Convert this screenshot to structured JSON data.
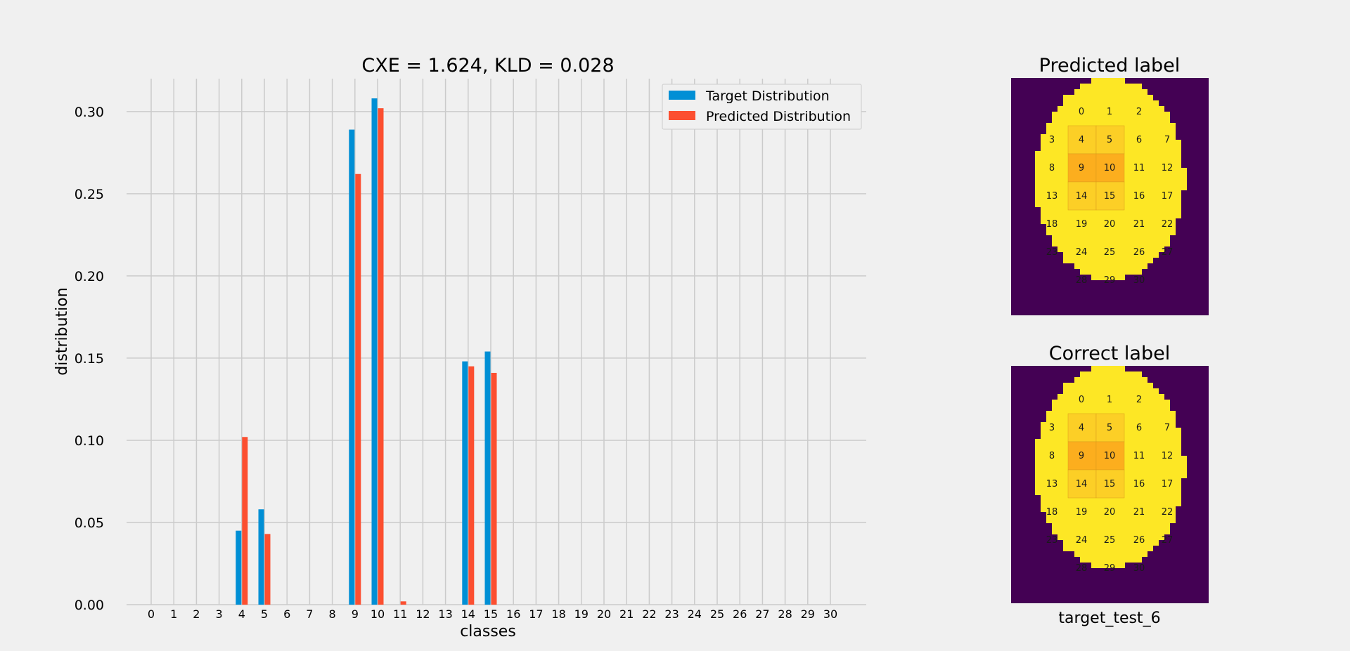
{
  "chart_data": [
    {
      "type": "bar",
      "title": "CXE = 1.624, KLD = 0.028",
      "xlabel": "classes",
      "ylabel": "distribution",
      "categories": [
        "0",
        "1",
        "2",
        "3",
        "4",
        "5",
        "6",
        "7",
        "8",
        "9",
        "10",
        "11",
        "12",
        "13",
        "14",
        "15",
        "16",
        "17",
        "18",
        "19",
        "20",
        "21",
        "22",
        "23",
        "24",
        "25",
        "26",
        "27",
        "28",
        "29",
        "30"
      ],
      "series": [
        {
          "name": "Target Distribution",
          "color": "#008fd5",
          "values": [
            0,
            0,
            0,
            0,
            0.045,
            0.058,
            0,
            0,
            0,
            0.289,
            0.308,
            0,
            0,
            0,
            0.148,
            0.154,
            0,
            0,
            0,
            0,
            0,
            0,
            0,
            0,
            0,
            0,
            0,
            0,
            0,
            0,
            0
          ]
        },
        {
          "name": "Predicted Distribution",
          "color": "#fc4f30",
          "values": [
            0,
            0,
            0,
            0,
            0.102,
            0.043,
            0,
            0,
            0,
            0.262,
            0.302,
            0.002,
            0,
            0,
            0.145,
            0.141,
            0,
            0,
            0,
            0,
            0,
            0,
            0,
            0,
            0,
            0,
            0,
            0,
            0,
            0,
            0
          ]
        }
      ],
      "ylim": [
        0,
        0.32
      ],
      "yticks": [
        "0.00",
        "0.05",
        "0.10",
        "0.15",
        "0.20",
        "0.25",
        "0.30"
      ],
      "ytick_values": [
        0,
        0.05,
        0.1,
        0.15,
        0.2,
        0.25,
        0.3
      ],
      "grid": true,
      "legend_position": "top-right"
    },
    {
      "type": "heatmap",
      "title": "Predicted label",
      "xlabel": "",
      "cell_labels": [
        "0",
        "1",
        "2",
        "3",
        "4",
        "5",
        "6",
        "7",
        "8",
        "9",
        "10",
        "11",
        "12",
        "13",
        "14",
        "15",
        "16",
        "17",
        "18",
        "19",
        "20",
        "21",
        "22",
        "23",
        "24",
        "25",
        "26",
        "27",
        "28",
        "29",
        "30"
      ],
      "highlight_levels": {
        "4": 1,
        "5": 1,
        "9": 2,
        "10": 2,
        "14": 1,
        "15": 1
      },
      "colors": {
        "background": "#440154",
        "region": "#fde725",
        "level1": "#fccf26",
        "level2": "#fcae1e"
      }
    },
    {
      "type": "heatmap",
      "title": "Correct label",
      "xlabel": "target_test_6",
      "cell_labels": [
        "0",
        "1",
        "2",
        "3",
        "4",
        "5",
        "6",
        "7",
        "8",
        "9",
        "10",
        "11",
        "12",
        "13",
        "14",
        "15",
        "16",
        "17",
        "18",
        "19",
        "20",
        "21",
        "22",
        "23",
        "24",
        "25",
        "26",
        "27",
        "28",
        "29",
        "30"
      ],
      "highlight_levels": {
        "4": 1,
        "5": 1,
        "9": 2,
        "10": 2,
        "14": 1,
        "15": 1
      },
      "colors": {
        "background": "#440154",
        "region": "#fde725",
        "level1": "#fccf26",
        "level2": "#fcae1e"
      }
    }
  ]
}
